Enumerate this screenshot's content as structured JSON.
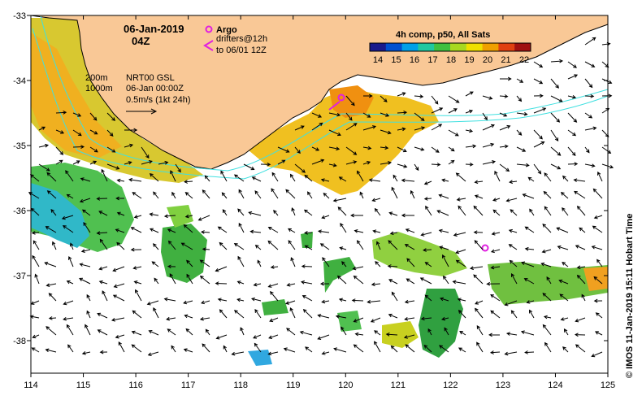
{
  "header": {
    "date": "06-Jan-2019",
    "time": "04Z"
  },
  "argo": {
    "label": "Argo",
    "drifters_line1": "drifters@12h",
    "drifters_line2": "to 06/01 12Z"
  },
  "notes": {
    "contour_200": "200m",
    "contour_1000": "1000m",
    "product": "NRT00 GSL",
    "product_time": "06-Jan 00:00Z",
    "vector_scale": "0.5m/s (1kt 24h)"
  },
  "colorbar": {
    "title": "4h comp, p50, All Sats",
    "ticks": [
      "14",
      "15",
      "16",
      "17",
      "18",
      "19",
      "20",
      "21",
      "22"
    ],
    "colors": [
      "#1a1a8c",
      "#0050d0",
      "#00a0e8",
      "#20c8a0",
      "#40c040",
      "#a8d820",
      "#f0e000",
      "#f0a000",
      "#e04010",
      "#a01010"
    ]
  },
  "axes": {
    "x_ticks": [
      "114",
      "115",
      "116",
      "117",
      "118",
      "119",
      "120",
      "121",
      "122",
      "123",
      "124",
      "125"
    ],
    "y_ticks": [
      "-33",
      "-34",
      "-35",
      "-36",
      "-37",
      "-38"
    ]
  },
  "credit": "© IMOS 11-Jan-2019 15:11 Hobart Time",
  "colors": {
    "land": "#f9c896",
    "contour": "#40e0e0",
    "argo": "#e020e0"
  }
}
